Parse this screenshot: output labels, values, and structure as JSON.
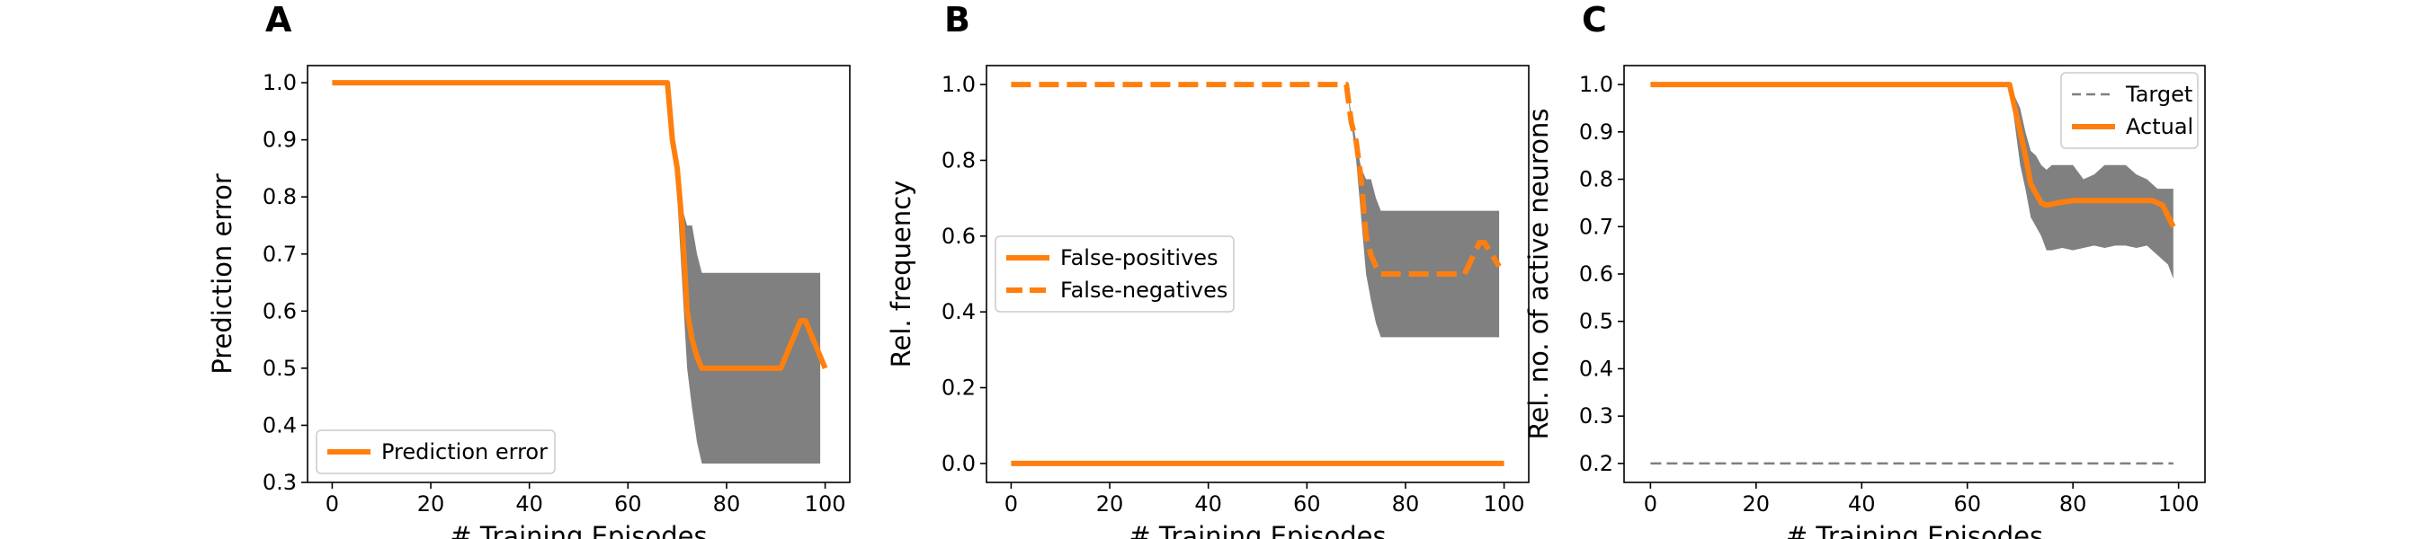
{
  "chart_data": [
    {
      "panel": "A",
      "type": "line",
      "xlabel": "# Training Episodes",
      "ylabel": "Prediction error",
      "xlim": [
        -5,
        105
      ],
      "ylim": [
        0.3,
        1.03
      ],
      "xticks": [
        "0",
        "20",
        "40",
        "60",
        "80",
        "100"
      ],
      "yticks": [
        "0.3",
        "0.4",
        "0.5",
        "0.6",
        "0.7",
        "0.8",
        "0.9",
        "1.0"
      ],
      "legend": {
        "location": "lower-left",
        "entries": [
          "Prediction error"
        ]
      },
      "series": [
        {
          "name": "Prediction error",
          "color": "#ff7f0e",
          "style": "solid",
          "x": [
            0,
            68,
            69,
            70,
            71,
            72,
            73,
            74,
            75,
            80,
            85,
            90,
            91,
            95,
            96,
            100
          ],
          "y": [
            1.0,
            1.0,
            0.9,
            0.85,
            0.75,
            0.6,
            0.55,
            0.52,
            0.5,
            0.5,
            0.5,
            0.5,
            0.5,
            0.583,
            0.583,
            0.5
          ]
        }
      ],
      "band": {
        "color": "#808080",
        "x": [
          68,
          70,
          71,
          72,
          73,
          74,
          75,
          80,
          99
        ],
        "lower": [
          1.0,
          0.8,
          0.65,
          0.5,
          0.43,
          0.37,
          0.333,
          0.333,
          0.333
        ],
        "upper": [
          1.0,
          0.85,
          0.78,
          0.75,
          0.75,
          0.7,
          0.667,
          0.667,
          0.667
        ]
      }
    },
    {
      "panel": "B",
      "type": "line",
      "xlabel": "# Training Episodes",
      "ylabel": "Rel. frequency",
      "xlim": [
        -5,
        105
      ],
      "ylim": [
        -0.05,
        1.05
      ],
      "xticks": [
        "0",
        "20",
        "40",
        "60",
        "80",
        "100"
      ],
      "yticks": [
        "0.0",
        "0.2",
        "0.4",
        "0.6",
        "0.8",
        "1.0"
      ],
      "legend": {
        "location": "center-left",
        "entries": [
          "False-positives",
          "False-negatives"
        ]
      },
      "series": [
        {
          "name": "False-positives",
          "color": "#ff7f0e",
          "style": "solid",
          "x": [
            0,
            100
          ],
          "y": [
            0.0,
            0.0
          ]
        },
        {
          "name": "False-negatives",
          "color": "#ff7f0e",
          "style": "dashed",
          "x": [
            0,
            68,
            69,
            70,
            71,
            72,
            73,
            74,
            75,
            80,
            85,
            90,
            92,
            95,
            96,
            99
          ],
          "y": [
            1.0,
            1.0,
            0.9,
            0.85,
            0.75,
            0.6,
            0.55,
            0.52,
            0.5,
            0.5,
            0.5,
            0.5,
            0.5,
            0.583,
            0.583,
            0.52
          ]
        }
      ],
      "band": {
        "color": "#808080",
        "x": [
          68,
          70,
          71,
          72,
          73,
          74,
          75,
          80,
          99
        ],
        "lower": [
          1.0,
          0.8,
          0.65,
          0.5,
          0.43,
          0.37,
          0.333,
          0.333,
          0.333
        ],
        "upper": [
          1.0,
          0.85,
          0.78,
          0.75,
          0.75,
          0.7,
          0.667,
          0.667,
          0.667
        ]
      }
    },
    {
      "panel": "C",
      "type": "line",
      "xlabel": "# Training Episodes",
      "ylabel": "Rel. no. of active neurons",
      "xlim": [
        -5,
        105
      ],
      "ylim": [
        0.16,
        1.04
      ],
      "xticks": [
        "0",
        "20",
        "40",
        "60",
        "80",
        "100"
      ],
      "yticks": [
        "0.2",
        "0.3",
        "0.4",
        "0.5",
        "0.6",
        "0.7",
        "0.8",
        "0.9",
        "1.0"
      ],
      "legend": {
        "location": "top-right",
        "entries": [
          "Target",
          "Actual"
        ]
      },
      "series": [
        {
          "name": "Target",
          "color": "#7f7f7f",
          "style": "dashed",
          "x": [
            0,
            99
          ],
          "y": [
            0.2,
            0.2
          ]
        },
        {
          "name": "Actual",
          "color": "#ff7f0e",
          "style": "solid",
          "x": [
            0,
            68,
            70,
            71,
            72,
            73,
            74,
            75,
            77,
            80,
            85,
            90,
            93,
            95,
            97,
            99
          ],
          "y": [
            1.0,
            1.0,
            0.9,
            0.85,
            0.79,
            0.77,
            0.75,
            0.745,
            0.75,
            0.755,
            0.755,
            0.755,
            0.755,
            0.755,
            0.745,
            0.7
          ]
        }
      ],
      "band": {
        "color": "#808080",
        "x": [
          68,
          70,
          71,
          72,
          73,
          74,
          75,
          76,
          78,
          80,
          82,
          84,
          86,
          88,
          90,
          92,
          94,
          96,
          98,
          99
        ],
        "lower": [
          1.0,
          0.83,
          0.78,
          0.72,
          0.7,
          0.68,
          0.65,
          0.65,
          0.655,
          0.65,
          0.655,
          0.66,
          0.655,
          0.66,
          0.66,
          0.655,
          0.66,
          0.64,
          0.62,
          0.59
        ],
        "upper": [
          1.0,
          0.95,
          0.9,
          0.86,
          0.85,
          0.83,
          0.82,
          0.83,
          0.83,
          0.83,
          0.8,
          0.81,
          0.83,
          0.83,
          0.83,
          0.81,
          0.8,
          0.78,
          0.78,
          0.78
        ]
      }
    }
  ]
}
